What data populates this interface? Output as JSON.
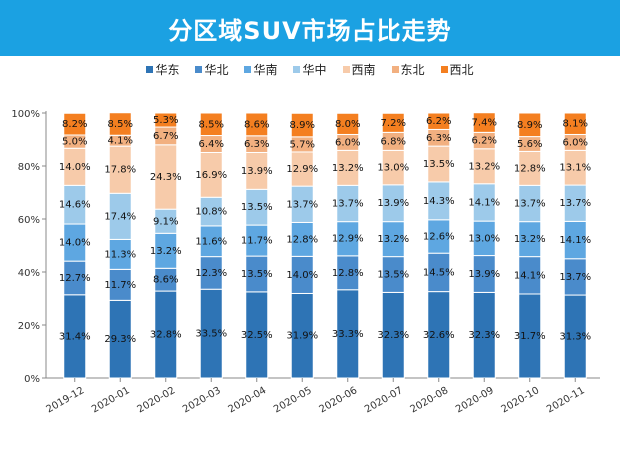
{
  "chart_data": {
    "type": "bar",
    "stacked": true,
    "title": "分区域SUV市场占比走势",
    "xlabel": "",
    "ylabel": "",
    "ylim": [
      0,
      100
    ],
    "yticks": [
      "0%",
      "20%",
      "40%",
      "60%",
      "80%",
      "100%"
    ],
    "legend_position": "top",
    "grid": false,
    "categories": [
      "2019-12",
      "2020-01",
      "2020-02",
      "2020-03",
      "2020-04",
      "2020-05",
      "2020-06",
      "2020-07",
      "2020-08",
      "2020-09",
      "2020-10",
      "2020-11"
    ],
    "series": [
      {
        "name": "华东",
        "color": "#2e74b5",
        "values": [
          31.4,
          29.3,
          32.8,
          33.5,
          32.5,
          31.9,
          33.3,
          32.3,
          32.6,
          32.3,
          31.7,
          31.3
        ]
      },
      {
        "name": "华北",
        "color": "#4a8bcb",
        "values": [
          12.7,
          11.7,
          8.6,
          12.3,
          13.5,
          14.0,
          12.8,
          13.5,
          14.5,
          13.9,
          14.1,
          13.7
        ]
      },
      {
        "name": "华南",
        "color": "#5ea7e1",
        "values": [
          14.0,
          11.3,
          13.2,
          11.6,
          11.7,
          12.8,
          12.9,
          13.2,
          12.6,
          13.0,
          13.2,
          14.1
        ]
      },
      {
        "name": "华中",
        "color": "#9dcaea",
        "values": [
          14.6,
          17.4,
          9.1,
          10.8,
          13.5,
          13.7,
          13.7,
          13.9,
          14.3,
          14.1,
          13.7,
          13.7
        ]
      },
      {
        "name": "西南",
        "color": "#f7cbaa",
        "values": [
          14.0,
          17.8,
          24.3,
          16.9,
          13.9,
          12.9,
          13.2,
          13.0,
          13.5,
          13.2,
          12.8,
          13.1
        ]
      },
      {
        "name": "东北",
        "color": "#f2b080",
        "values": [
          5.0,
          4.1,
          6.7,
          6.4,
          6.3,
          5.7,
          6.0,
          6.8,
          6.3,
          6.2,
          5.6,
          6.0
        ]
      },
      {
        "name": "西北",
        "color": "#f47f20",
        "values": [
          8.2,
          8.5,
          5.3,
          8.5,
          8.6,
          8.9,
          8.0,
          7.2,
          6.2,
          7.4,
          8.9,
          8.1
        ]
      }
    ]
  }
}
